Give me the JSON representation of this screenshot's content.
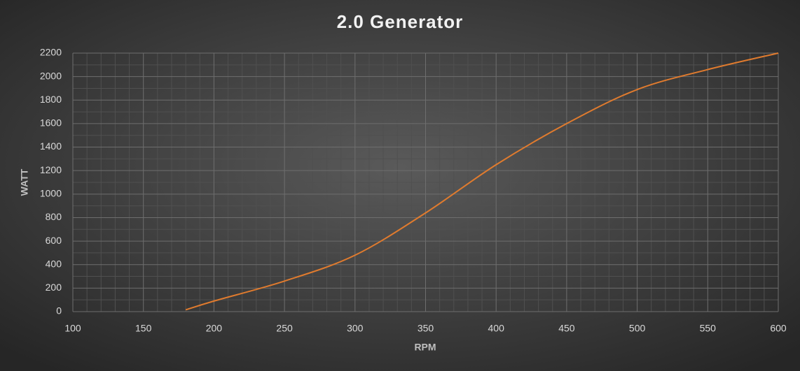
{
  "chart_data": {
    "type": "line",
    "title": "2.0 Generator",
    "x_label": "RPM",
    "y_label": "WATT",
    "x": [
      180,
      200,
      250,
      300,
      350,
      400,
      450,
      500,
      550,
      600
    ],
    "series": [
      {
        "name": "WATT",
        "color": "#e07b2e",
        "values": [
          15,
          90,
          260,
          480,
          840,
          1250,
          1600,
          1890,
          2060,
          2200
        ]
      }
    ],
    "xlim": [
      100,
      600
    ],
    "xticks": [
      100,
      150,
      200,
      250,
      300,
      350,
      400,
      450,
      500,
      550,
      600
    ],
    "ylim": [
      0,
      2200
    ],
    "yticks": [
      0,
      200,
      400,
      600,
      800,
      1000,
      1200,
      1400,
      1600,
      1800,
      2000,
      2200
    ],
    "grid": true,
    "minor_grid": true,
    "legend": false
  }
}
